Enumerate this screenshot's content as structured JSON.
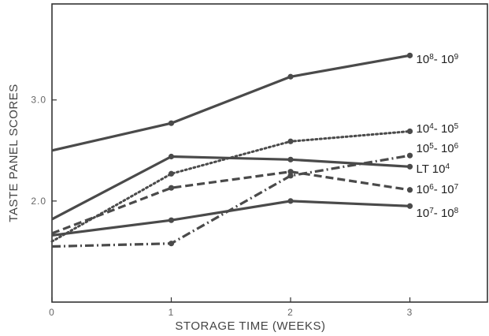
{
  "chart_data": {
    "type": "line",
    "xlabel": "STORAGE TIME (WEEKS)",
    "ylabel": "TASTE PANEL SCORES",
    "x": [
      0,
      1,
      2,
      3
    ],
    "xlim": [
      0,
      3.65
    ],
    "ylim": [
      1.0,
      3.95
    ],
    "x_ticks": [
      "0",
      "1",
      "2",
      "3"
    ],
    "y_ticks": [
      {
        "value": 2.0,
        "label": "2.0"
      },
      {
        "value": 3.0,
        "label": "3.0"
      }
    ],
    "grid": false,
    "legend": "direct labels at right end of lines",
    "series": [
      {
        "label_base1": "10",
        "label_exp1": "8",
        "label_mid": "- ",
        "label_base2": "10",
        "label_exp2": "9",
        "style": "solid",
        "values": [
          2.5,
          2.77,
          3.23,
          3.44
        ]
      },
      {
        "label_base1": "10",
        "label_exp1": "4",
        "label_mid": "- ",
        "label_base2": "10",
        "label_exp2": "5",
        "style": "dotted",
        "values": [
          1.6,
          2.27,
          2.59,
          2.69
        ]
      },
      {
        "label_base1": "10",
        "label_exp1": "5",
        "label_mid": "- ",
        "label_base2": "10",
        "label_exp2": "6",
        "style": "dashdot",
        "values": [
          1.55,
          1.58,
          2.25,
          2.45
        ]
      },
      {
        "label_text": "LT 10",
        "label_exp1": "4",
        "style": "solid",
        "values": [
          1.82,
          2.44,
          2.41,
          2.34
        ]
      },
      {
        "label_base1": "10",
        "label_exp1": "6",
        "label_mid": "- ",
        "label_base2": "10",
        "label_exp2": "7",
        "style": "dashed",
        "values": [
          1.68,
          2.13,
          2.29,
          2.11
        ]
      },
      {
        "label_base1": "10",
        "label_exp1": "7",
        "label_mid": "- ",
        "label_base2": "10",
        "label_exp2": "8",
        "style": "solid",
        "values": [
          1.66,
          1.81,
          2.0,
          1.95
        ]
      }
    ],
    "colors": {
      "line": "#4a4a4a",
      "frame": "#333333",
      "text": "#222222"
    }
  }
}
